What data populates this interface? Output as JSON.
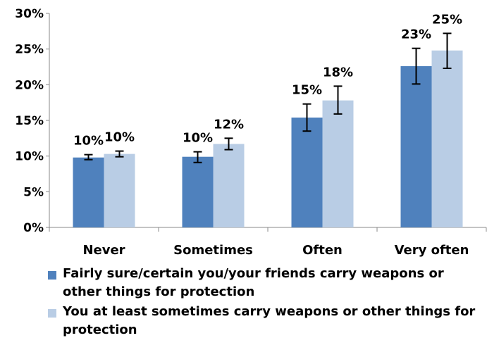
{
  "chart_data": {
    "type": "bar",
    "categories": [
      "Never",
      "Sometimes",
      "Often",
      "Very often"
    ],
    "series": [
      {
        "name": "Fairly sure/certain you/your friends carry weapons or other things for protection",
        "values": [
          9.8,
          9.9,
          15.4,
          22.6
        ],
        "labels": [
          "10%",
          "10%",
          "15%",
          "23%"
        ],
        "error": [
          [
            9.5,
            10.2
          ],
          [
            9.1,
            10.6
          ],
          [
            13.5,
            17.3
          ],
          [
            20.1,
            25.1
          ]
        ],
        "color": "#4F81BD"
      },
      {
        "name": "You at least sometimes carry weapons or other things for protection",
        "values": [
          10.3,
          11.7,
          17.8,
          24.8
        ],
        "labels": [
          "10%",
          "12%",
          "18%",
          "25%"
        ],
        "error": [
          [
            9.9,
            10.7
          ],
          [
            10.9,
            12.5
          ],
          [
            15.9,
            19.8
          ],
          [
            22.3,
            27.2
          ]
        ],
        "color": "#B9CDE5"
      }
    ],
    "ylim": [
      0,
      30
    ],
    "yticks": [
      "0%",
      "5%",
      "10%",
      "15%",
      "20%",
      "25%",
      "30%"
    ],
    "grid": false,
    "error_bars": true,
    "legend_position": "bottom"
  }
}
